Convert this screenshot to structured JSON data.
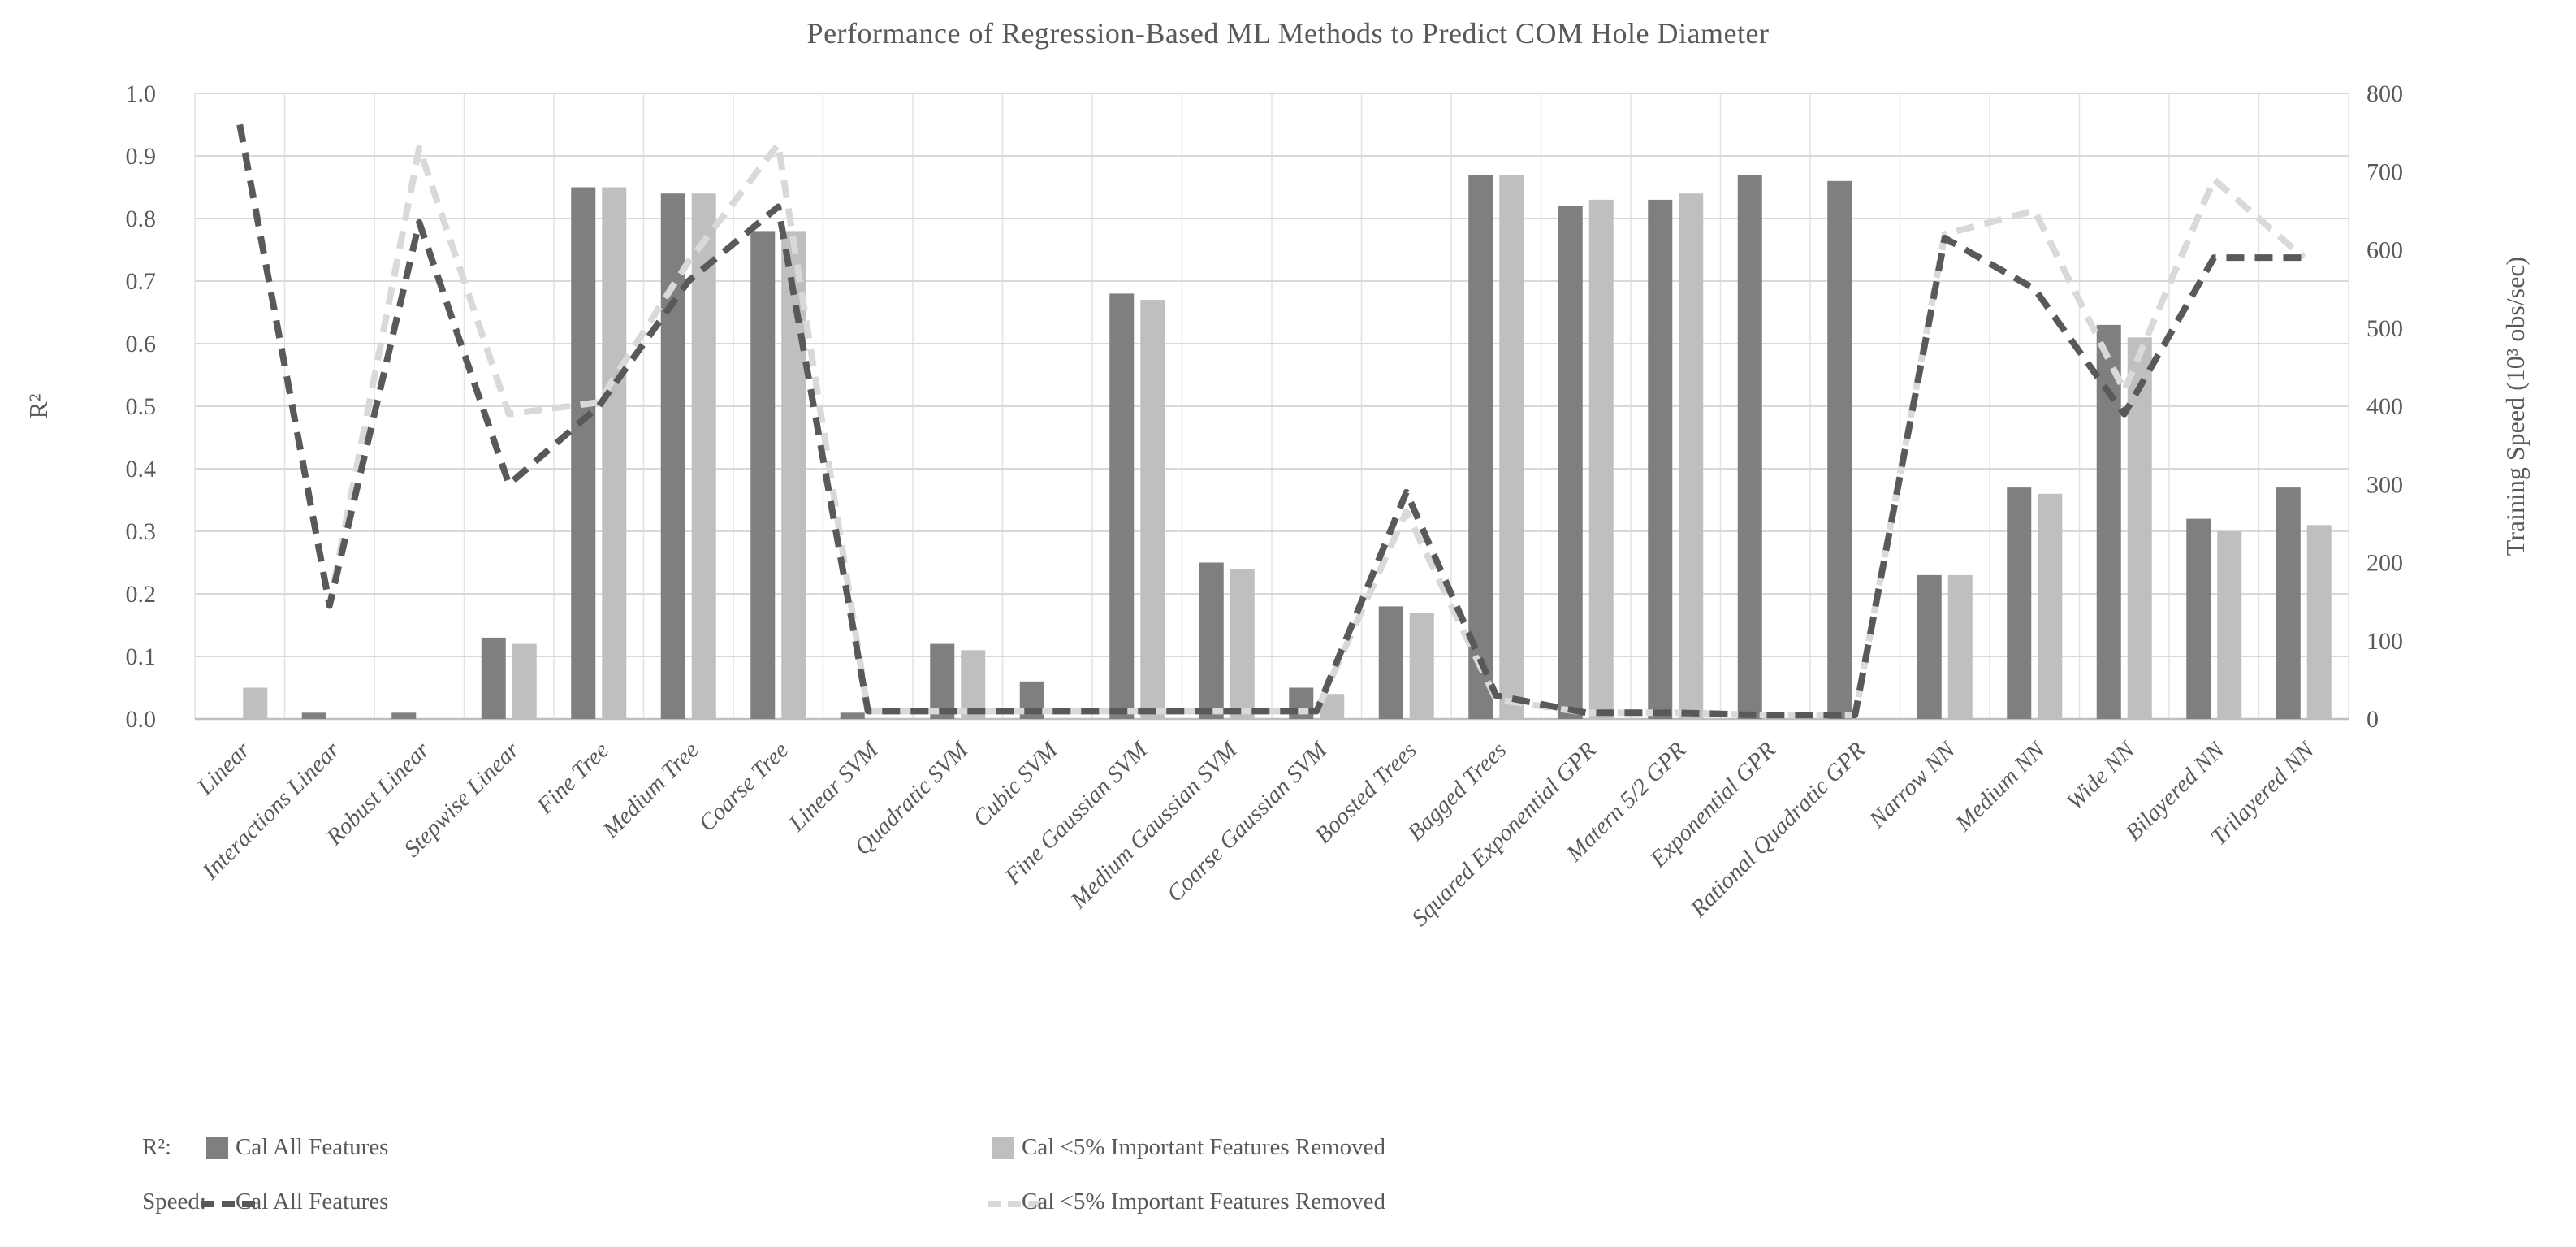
{
  "chart_data": {
    "type": "bar+line combo",
    "title": "Performance of Regression-Based ML Methods to Predict COM Hole Diameter",
    "left_axis": {
      "label": "R²",
      "min": 0.0,
      "max": 1.0,
      "ticks": [
        "0.0",
        "0.1",
        "0.2",
        "0.3",
        "0.4",
        "0.5",
        "0.6",
        "0.7",
        "0.8",
        "0.9",
        "1.0"
      ]
    },
    "right_axis": {
      "label": "Training Speed (10³ obs/sec)",
      "min": 0,
      "max": 800,
      "ticks": [
        "0",
        "100",
        "200",
        "300",
        "400",
        "500",
        "600",
        "700",
        "800"
      ]
    },
    "grid": {
      "horizontal": true,
      "vertical": true
    },
    "categories": [
      "Linear",
      "Interactions Linear",
      "Robust Linear",
      "Stepwise Linear",
      "Fine Tree",
      "Medium Tree",
      "Coarse Tree",
      "Linear SVM",
      "Quadratic SVM",
      "Cubic SVM",
      "Fine Gaussian SVM",
      "Medium Gaussian SVM",
      "Coarse Gaussian SVM",
      "Boosted Trees",
      "Bagged Trees",
      "Squared Exponential GPR",
      "Matern 5/2 GPR",
      "Exponential GPR",
      "Rational Quadratic GPR",
      "Narrow NN",
      "Medium NN",
      "Wide NN",
      "Bilayered NN",
      "Trilayered NN"
    ],
    "bar_series": [
      {
        "name": "Cal All Features",
        "axis": "R²",
        "color": "#7f7f7f",
        "values": [
          null,
          0.01,
          0.01,
          0.13,
          0.85,
          0.84,
          0.78,
          0.01,
          0.12,
          0.06,
          0.68,
          0.25,
          0.05,
          0.18,
          0.87,
          0.82,
          0.83,
          0.87,
          0.86,
          0.23,
          0.37,
          0.63,
          0.32,
          0.37
        ]
      },
      {
        "name": "Cal <5% Important Features Removed",
        "axis": "R²",
        "color": "#bfbfbf",
        "values": [
          0.05,
          null,
          null,
          0.12,
          0.85,
          0.84,
          0.78,
          null,
          0.11,
          null,
          0.67,
          0.24,
          0.04,
          0.17,
          0.87,
          0.83,
          0.84,
          null,
          null,
          0.23,
          0.36,
          0.61,
          0.3,
          0.31
        ]
      }
    ],
    "line_series": [
      {
        "name": "Cal All Features",
        "axis": "Training Speed (10³ obs/sec)",
        "color": "#595959",
        "style": "dashed",
        "values": [
          760,
          145,
          635,
          300,
          400,
          560,
          655,
          10,
          10,
          10,
          10,
          10,
          10,
          290,
          30,
          8,
          8,
          5,
          5,
          615,
          550,
          390,
          590,
          590
        ]
      },
      {
        "name": "Cal <5% Important Features Removed",
        "axis": "Training Speed (10³ obs/sec)",
        "color": "#d9d9d9",
        "style": "dashed",
        "values": [
          760,
          145,
          730,
          390,
          405,
          585,
          735,
          10,
          10,
          10,
          10,
          10,
          10,
          265,
          25,
          8,
          8,
          5,
          5,
          620,
          650,
          420,
          690,
          590
        ]
      }
    ],
    "legend": {
      "r2_label": "R²:",
      "speed_label": "Speed:",
      "position": "bottom-left, two rows"
    },
    "colors": {
      "gridline": "#d9d9d9",
      "axis_line": "#bfbfbf",
      "text": "#595959"
    }
  }
}
